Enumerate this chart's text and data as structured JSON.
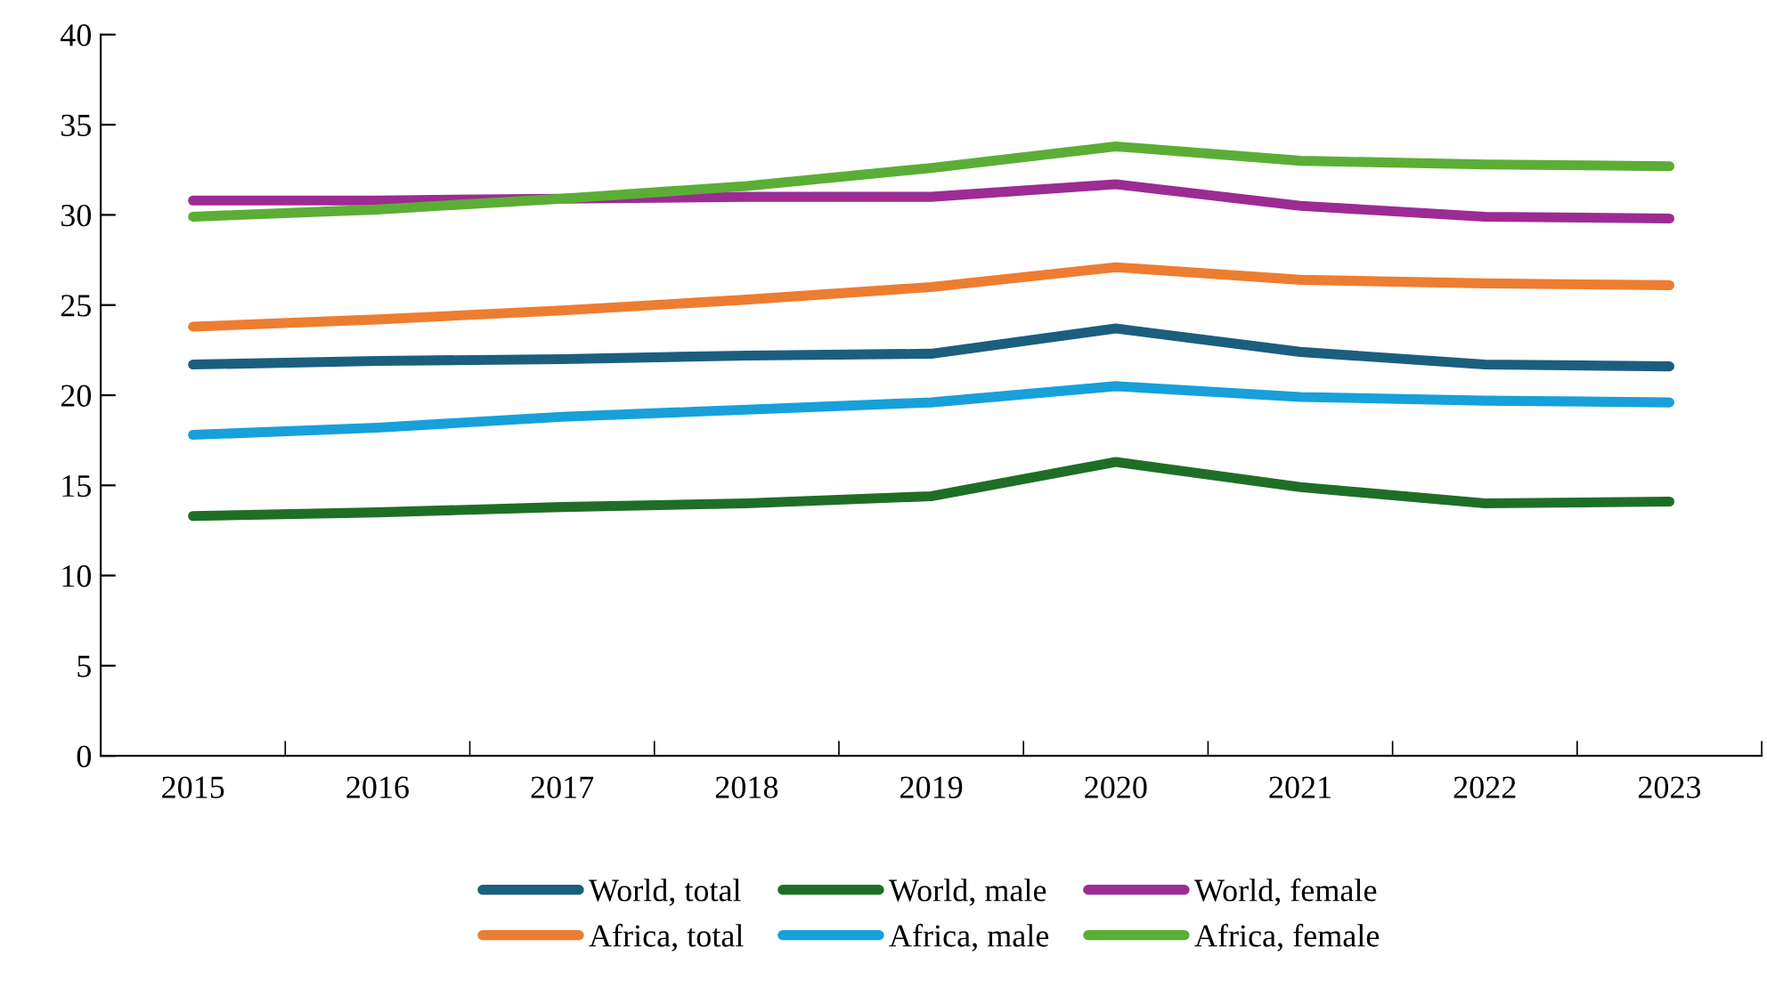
{
  "chart_data": {
    "type": "line",
    "categories": [
      "2015",
      "2016",
      "2017",
      "2018",
      "2019",
      "2020",
      "2021",
      "2022",
      "2023"
    ],
    "series": [
      {
        "name": "World, total",
        "color": "#1b5e7e",
        "values": [
          21.7,
          21.9,
          22.0,
          22.2,
          22.3,
          23.7,
          22.4,
          21.7,
          21.6
        ]
      },
      {
        "name": "Africa, total",
        "color": "#ed7d31",
        "values": [
          23.8,
          24.2,
          24.7,
          25.3,
          26.0,
          27.1,
          26.4,
          26.2,
          26.1
        ]
      },
      {
        "name": "World, male",
        "color": "#1e6f25",
        "values": [
          13.3,
          13.5,
          13.8,
          14.0,
          14.4,
          16.3,
          14.9,
          14.0,
          14.1
        ]
      },
      {
        "name": "Africa, male",
        "color": "#17a0da",
        "values": [
          17.8,
          18.2,
          18.8,
          19.2,
          19.6,
          20.5,
          19.9,
          19.7,
          19.6
        ]
      },
      {
        "name": "World, female",
        "color": "#9c2b94",
        "values": [
          30.8,
          30.8,
          30.9,
          31.0,
          31.0,
          31.7,
          30.5,
          29.9,
          29.8
        ]
      },
      {
        "name": "Africa, female",
        "color": "#5aae35",
        "values": [
          29.9,
          30.3,
          30.9,
          31.6,
          32.6,
          33.8,
          33.0,
          32.8,
          32.7
        ]
      }
    ],
    "ylim": [
      0,
      40
    ],
    "yticks": [
      0,
      5,
      10,
      15,
      20,
      25,
      30,
      35,
      40
    ],
    "grid": false,
    "legend": "bottom",
    "marker": "none",
    "line_style": "solid"
  }
}
